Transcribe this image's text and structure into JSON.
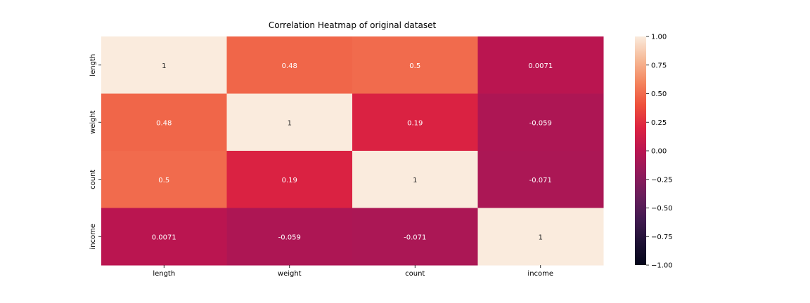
{
  "chart_data": {
    "type": "heatmap",
    "title": "Correlation Heatmap of original dataset",
    "rows": [
      "length",
      "weight",
      "count",
      "income"
    ],
    "columns": [
      "length",
      "weight",
      "count",
      "income"
    ],
    "values": [
      [
        1,
        0.48,
        0.5,
        0.0071
      ],
      [
        0.48,
        1,
        0.19,
        -0.059
      ],
      [
        0.5,
        0.19,
        1,
        -0.071
      ],
      [
        0.0071,
        -0.059,
        -0.071,
        1
      ]
    ],
    "value_labels": [
      [
        "1",
        "0.48",
        "0.5",
        "0.0071"
      ],
      [
        "0.48",
        "1",
        "0.19",
        "-0.059"
      ],
      [
        "0.5",
        "0.19",
        "1",
        "-0.071"
      ],
      [
        "0.0071",
        "-0.059",
        "-0.071",
        "1"
      ]
    ],
    "colorbar": {
      "vmin": -1.0,
      "vmax": 1.0,
      "ticks": [
        "1.00",
        "0.75",
        "0.50",
        "0.25",
        "0.00",
        "−0.25",
        "−0.50",
        "−0.75",
        "−1.00"
      ],
      "tick_values": [
        1.0,
        0.75,
        0.5,
        0.25,
        0.0,
        -0.25,
        -0.5,
        -0.75,
        -1.0
      ]
    },
    "colormap": "rocket",
    "xlabel": "",
    "ylabel": ""
  }
}
